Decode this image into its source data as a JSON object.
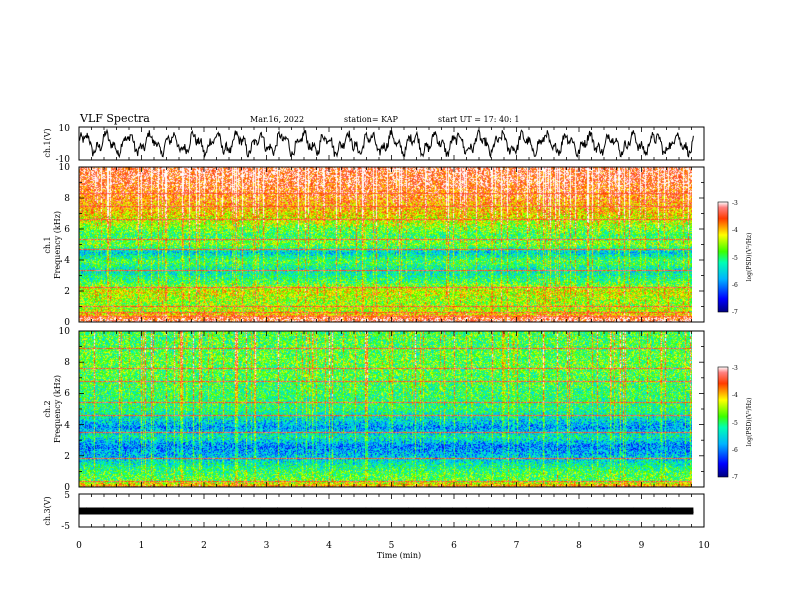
{
  "header": {
    "title": "VLF Spectra",
    "date": "Mar.16, 2022",
    "station": "station= KAP",
    "start_ut": "start  UT =   17: 40: 1"
  },
  "chart_data": [
    {
      "type": "line",
      "name": "ch1-waveform",
      "ylabel": "ch.1(V)",
      "ylim": [
        -10,
        10
      ],
      "yticks": [
        "10",
        "-10"
      ],
      "xlim": [
        0,
        10
      ],
      "data_end_min": 9.83,
      "description_values": "quasi-periodic oscillation between about -7 and +7 V",
      "color": "#000000"
    },
    {
      "type": "heatmap",
      "name": "ch1-spectrogram",
      "ylabel": "Frequency (kHz)",
      "channel_label": "ch.1",
      "ylim": [
        0,
        10
      ],
      "yticks": [
        "0",
        "2",
        "4",
        "6",
        "8",
        "10"
      ],
      "xlim": [
        0,
        10
      ],
      "data_end_min": 9.83,
      "colorbar": {
        "label": "log(PSD)(V²/Hz)",
        "range": [
          -7,
          -3
        ],
        "ticks": [
          "-3",
          "-4",
          "-5",
          "-6",
          "-7"
        ]
      },
      "level_profile_khz": [
        [
          0,
          -3.2
        ],
        [
          0.3,
          -3.6
        ],
        [
          0.6,
          -4.4
        ],
        [
          1.2,
          -4.6
        ],
        [
          2.0,
          -4.3
        ],
        [
          2.6,
          -5.0
        ],
        [
          3.3,
          -5.4
        ],
        [
          3.9,
          -4.9
        ],
        [
          4.5,
          -5.6
        ],
        [
          5.0,
          -4.7
        ],
        [
          5.6,
          -5.0
        ],
        [
          6.2,
          -4.6
        ],
        [
          7.0,
          -4.1
        ],
        [
          8.0,
          -3.7
        ],
        [
          9.0,
          -3.4
        ],
        [
          10,
          -3.3
        ]
      ],
      "horizontal_lines_khz": [
        0.3,
        0.6,
        1.0,
        2.2,
        3.3,
        4.7,
        5.3,
        6.6,
        7.5,
        8.3
      ]
    },
    {
      "type": "heatmap",
      "name": "ch2-spectrogram",
      "ylabel": "Frequency (kHz)",
      "channel_label": "ch.2",
      "ylim": [
        0,
        10
      ],
      "yticks": [
        "0",
        "2",
        "4",
        "6",
        "8",
        "10"
      ],
      "xlim": [
        0,
        10
      ],
      "data_end_min": 9.83,
      "colorbar": {
        "label": "log(PSD)(V²/Hz)",
        "range": [
          -7,
          -3
        ],
        "ticks": [
          "-3",
          "-4",
          "-5",
          "-6",
          "-7"
        ]
      },
      "level_profile_khz": [
        [
          0,
          -3.8
        ],
        [
          0.4,
          -4.8
        ],
        [
          1.0,
          -5.0
        ],
        [
          1.8,
          -5.6
        ],
        [
          2.6,
          -6.0
        ],
        [
          3.2,
          -5.3
        ],
        [
          3.8,
          -5.9
        ],
        [
          4.3,
          -5.5
        ],
        [
          5.0,
          -5.1
        ],
        [
          6.0,
          -5.0
        ],
        [
          7.0,
          -4.9
        ],
        [
          8.0,
          -4.8
        ],
        [
          9.0,
          -4.9
        ],
        [
          10,
          -4.9
        ]
      ],
      "horizontal_lines_khz": [
        0.3,
        1.8,
        3.5,
        4.6,
        5.4,
        6.8,
        7.6,
        8.9
      ]
    },
    {
      "type": "line",
      "name": "ch3-waveform",
      "ylabel": "ch.3(V)",
      "ylim": [
        -5,
        5
      ],
      "yticks": [
        "5",
        "-5"
      ],
      "xlim": [
        0,
        10
      ],
      "data_end_min": 9.83,
      "level_v": 0,
      "color": "#000000"
    }
  ],
  "x_axis": {
    "label": "Time  (min)",
    "ticks": [
      "0",
      "1",
      "2",
      "3",
      "4",
      "5",
      "6",
      "7",
      "8",
      "9",
      "10"
    ]
  }
}
